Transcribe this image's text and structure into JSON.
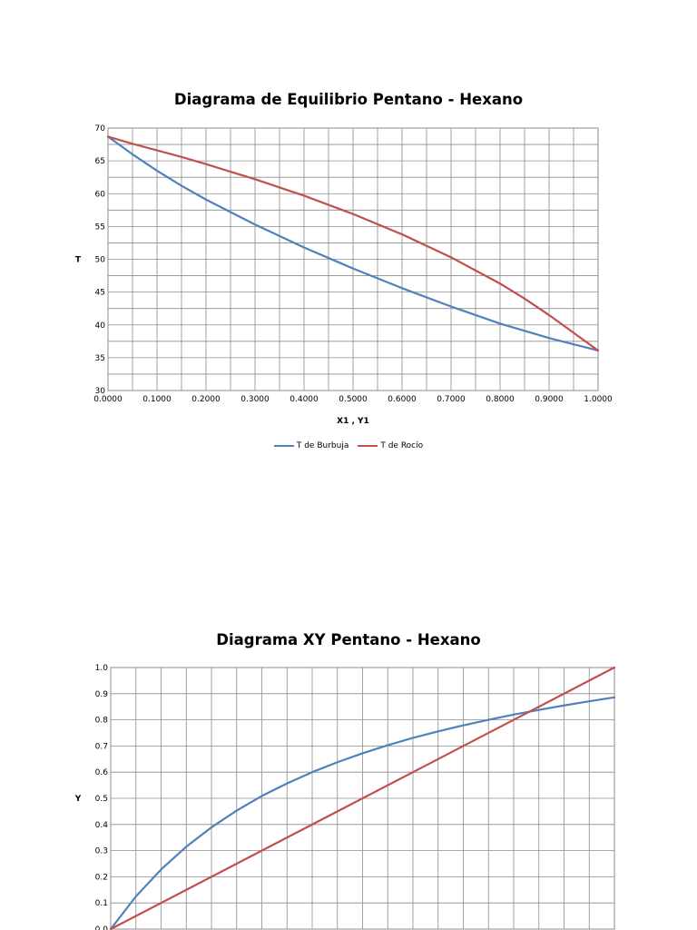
{
  "chart_data": [
    {
      "type": "line",
      "title": "Diagrama de Equilibrio Pentano - Hexano",
      "xlabel": "X1 , Y1",
      "ylabel": "T",
      "xlim": [
        0,
        1
      ],
      "ylim": [
        30,
        70
      ],
      "x_ticks": [
        "0.0000",
        "0.1000",
        "0.2000",
        "0.3000",
        "0.4000",
        "0.5000",
        "0.6000",
        "0.7000",
        "0.8000",
        "0.9000",
        "1.0000"
      ],
      "y_ticks": [
        "30",
        "35",
        "40",
        "45",
        "50",
        "55",
        "60",
        "65",
        "70"
      ],
      "grid": true,
      "legend_position": "bottom",
      "series": [
        {
          "name": "T de Burbuja",
          "color": "#4f81bd",
          "x": [
            0,
            0.05,
            0.1,
            0.15,
            0.2,
            0.3,
            0.4,
            0.5,
            0.6,
            0.7,
            0.8,
            0.9,
            1.0
          ],
          "y": [
            68.7,
            66.0,
            63.5,
            61.2,
            59.1,
            55.3,
            51.8,
            48.6,
            45.6,
            42.8,
            40.2,
            38.0,
            36.1
          ]
        },
        {
          "name": "T de Rocío",
          "color": "#c0504d",
          "x": [
            0,
            0.05,
            0.1,
            0.15,
            0.2,
            0.3,
            0.4,
            0.5,
            0.6,
            0.7,
            0.8,
            0.85,
            0.9,
            0.95,
            1.0
          ],
          "y": [
            68.7,
            67.6,
            66.6,
            65.6,
            64.5,
            62.2,
            59.7,
            56.9,
            53.8,
            50.3,
            46.3,
            44.0,
            41.5,
            38.8,
            36.1
          ]
        }
      ]
    },
    {
      "type": "line",
      "title": "Diagrama XY Pentano - Hexano",
      "xlabel": "",
      "ylabel": "Y",
      "xlim": [
        0,
        1
      ],
      "ylim": [
        0,
        1
      ],
      "y_ticks": [
        "0.0",
        "0.1",
        "0.2",
        "0.3",
        "0.4",
        "0.5",
        "0.6",
        "0.7",
        "0.8",
        "0.9",
        "1.0"
      ],
      "grid": true,
      "series": [
        {
          "color": "#4f81bd",
          "x": [
            0,
            0.05,
            0.1,
            0.15,
            0.2,
            0.25,
            0.3,
            0.35,
            0.4,
            0.45,
            0.5,
            0.55,
            0.6,
            0.65,
            0.7,
            0.75,
            0.8,
            0.85,
            0.9,
            0.95,
            1.0
          ],
          "y": [
            0,
            0.125,
            0.228,
            0.315,
            0.389,
            0.453,
            0.509,
            0.557,
            0.6,
            0.638,
            0.672,
            0.703,
            0.731,
            0.756,
            0.779,
            0.8,
            0.82,
            0.838,
            0.855,
            0.871,
            0.886
          ]
        },
        {
          "color": "#c0504d",
          "x": [
            0,
            1.0
          ],
          "y": [
            0,
            1.0
          ]
        }
      ]
    }
  ]
}
